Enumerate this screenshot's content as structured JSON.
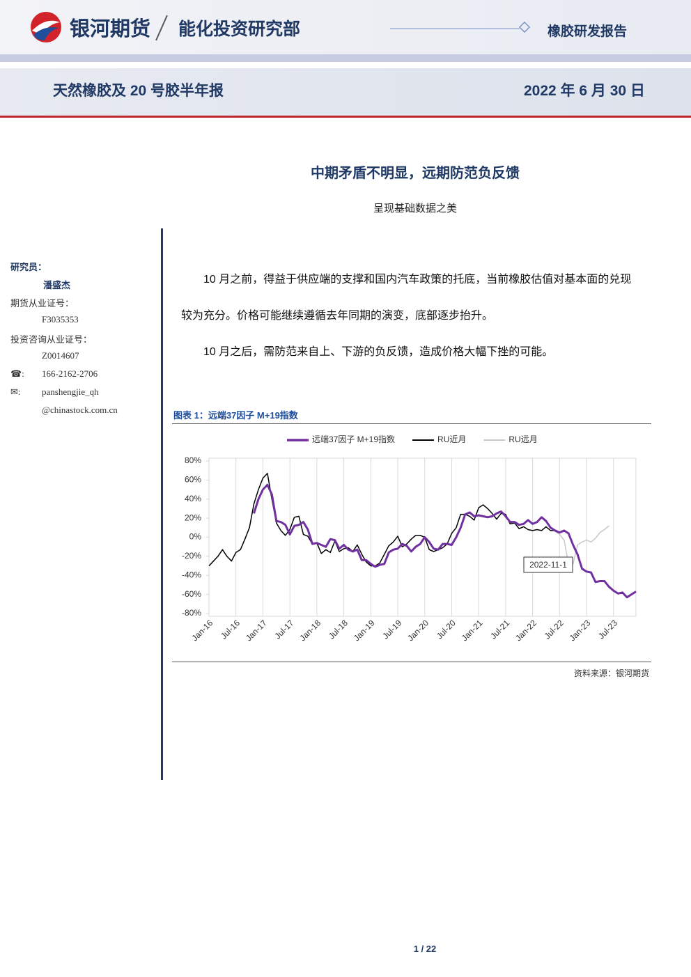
{
  "header": {
    "brand": "银河期货",
    "department": "能化投资研究部",
    "report_type": "橡胶研发报告",
    "report_title": "天然橡胶及 20 号胶半年报",
    "date": "2022 年 6 月 30 日"
  },
  "title": "中期矛盾不明显，远期防范负反馈",
  "subtitle": "呈现基础数据之美",
  "sidebar": {
    "researcher_label": "研究员：",
    "researcher": "潘盛杰",
    "futures_license_label": "期货从业证号：",
    "futures_license": "F3035353",
    "advisory_license_label": "投资咨询从业证号：",
    "advisory_license": "Z0014607",
    "phone_label": "☎:",
    "phone": "166-2162-2706",
    "email_label": "✉:",
    "email_lines": [
      "panshengjie_qh",
      "@chinastock.com.cn"
    ]
  },
  "paragraphs": [
    "10 月之前，得益于供应端的支撑和国内汽车政策的托底，当前橡胶估值对基本面的兑现较为充分。价格可能继续遵循去年同期的演变，底部逐步抬升。",
    "10 月之后，需防范来自上、下游的负反馈，造成价格大幅下挫的可能。"
  ],
  "figure": {
    "caption": "图表 1：远端37因子 M+19指数",
    "source": "资料来源：银河期货"
  },
  "chart_data": {
    "type": "line",
    "legend": "top",
    "grid": true,
    "annotation": "2022-11-1",
    "categories": [
      "Jan-16",
      null,
      null,
      null,
      null,
      null,
      "Jul-16",
      null,
      null,
      null,
      null,
      null,
      "Jan-17",
      null,
      null,
      null,
      null,
      null,
      "Jul-17",
      null,
      null,
      null,
      null,
      null,
      "Jan-18",
      null,
      null,
      null,
      null,
      null,
      "Jul-18",
      null,
      null,
      null,
      null,
      null,
      "Jan-19",
      null,
      null,
      null,
      null,
      null,
      "Jul-19",
      null,
      null,
      null,
      null,
      null,
      "Jan-20",
      null,
      null,
      null,
      null,
      null,
      "Jul-20",
      null,
      null,
      null,
      null,
      null,
      "Jan-21",
      null,
      null,
      null,
      null,
      null,
      "Jul-21",
      null,
      null,
      null,
      null,
      null,
      "Jan-22",
      null,
      null,
      null,
      null,
      null,
      "Jul-22",
      null,
      null,
      null,
      null,
      null,
      "Jan-23",
      null,
      null,
      null,
      null,
      null,
      "Jul-23",
      null,
      null,
      null,
      null,
      null
    ],
    "series": [
      {
        "name": "远端37因子 M+19指数",
        "color": "#7030a0",
        "width": 3,
        "values": [
          null,
          null,
          null,
          null,
          null,
          null,
          null,
          null,
          null,
          null,
          25,
          40,
          50,
          55,
          45,
          17,
          16,
          13,
          3,
          12,
          13,
          16,
          8,
          -7,
          -6,
          -8,
          -10,
          -2,
          -3,
          -12,
          -8,
          -13,
          -15,
          -13,
          -24,
          -24,
          -28,
          -31,
          -29,
          -28,
          -16,
          -13,
          -12,
          -7,
          -9,
          -15,
          -10,
          -7,
          0,
          -5,
          -12,
          -13,
          -7,
          -7,
          -8,
          0,
          10,
          24,
          26,
          22,
          23,
          22,
          21,
          22,
          25,
          27,
          22,
          16,
          16,
          13,
          14,
          18,
          14,
          16,
          21,
          17,
          10,
          7,
          5,
          7,
          4,
          -8,
          -18,
          -33,
          -36,
          -37,
          -47,
          -46,
          -46,
          -52,
          -56,
          -59,
          -58,
          -63,
          -60,
          -57
        ]
      },
      {
        "name": "RU近月",
        "color": "#000000",
        "width": 1.5,
        "values": [
          -30,
          -25,
          -20,
          -13,
          -20,
          -25,
          -16,
          -13,
          -2,
          10,
          35,
          50,
          62,
          67,
          40,
          15,
          7,
          2,
          8,
          21,
          22,
          3,
          1,
          -7,
          -6,
          -17,
          -13,
          -16,
          -4,
          -15,
          -12,
          -11,
          -15,
          -8,
          -18,
          -26,
          -30,
          -30,
          -27,
          -18,
          -9,
          -5,
          1,
          -10,
          -7,
          -2,
          2,
          2,
          0,
          -13,
          -15,
          -13,
          -11,
          -7,
          4,
          10,
          24,
          24,
          22,
          18,
          31,
          34,
          30,
          25,
          19,
          25,
          24,
          14,
          15,
          9,
          11,
          8,
          7,
          8,
          7,
          11,
          7,
          7,
          null,
          null,
          null,
          null,
          null,
          null,
          null,
          null,
          null,
          null,
          null,
          null,
          null,
          null,
          null,
          null,
          null,
          null
        ]
      },
      {
        "name": "RU远月",
        "color": "#c8c8c8",
        "width": 1.5,
        "values": [
          null,
          null,
          null,
          null,
          null,
          null,
          null,
          null,
          null,
          null,
          null,
          null,
          null,
          null,
          null,
          null,
          null,
          null,
          null,
          null,
          null,
          null,
          null,
          null,
          null,
          null,
          null,
          null,
          null,
          null,
          null,
          null,
          null,
          null,
          null,
          null,
          null,
          null,
          null,
          null,
          null,
          null,
          null,
          null,
          null,
          null,
          null,
          null,
          null,
          null,
          null,
          null,
          null,
          null,
          null,
          null,
          null,
          null,
          null,
          null,
          null,
          null,
          null,
          null,
          null,
          null,
          null,
          null,
          null,
          null,
          null,
          null,
          null,
          null,
          null,
          null,
          10,
          6,
          3,
          -3,
          -28,
          -28,
          -8,
          -5,
          -3,
          -5,
          -1,
          5,
          8,
          12,
          null,
          null,
          null,
          null,
          null,
          null
        ]
      }
    ],
    "ylim": [
      -80,
      80
    ],
    "yticks": [
      {
        "value": -80,
        "label": "-80%"
      },
      {
        "value": -60,
        "label": "-60%"
      },
      {
        "value": -40,
        "label": "-40%"
      },
      {
        "value": -20,
        "label": "-20%"
      },
      {
        "value": 0,
        "label": "0%"
      },
      {
        "value": 20,
        "label": "20%"
      },
      {
        "value": 40,
        "label": "40%"
      },
      {
        "value": 60,
        "label": "60%"
      },
      {
        "value": 80,
        "label": "80%"
      }
    ]
  },
  "footer": {
    "page": "1 / 22"
  }
}
